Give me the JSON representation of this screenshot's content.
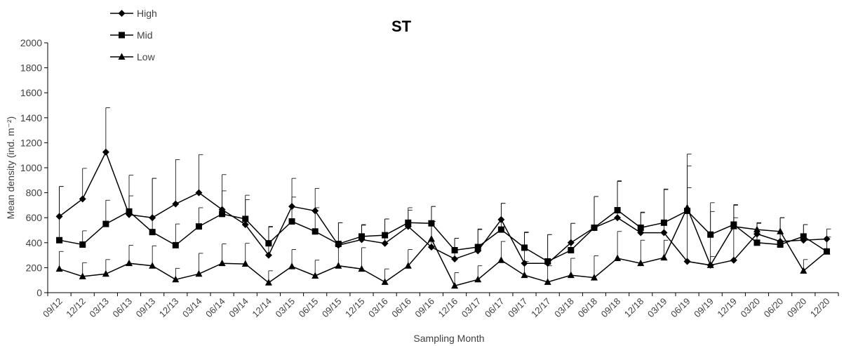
{
  "chart_data": {
    "type": "line",
    "title": "ST",
    "xlabel": "Sampling Month",
    "ylabel": "Mean density (ind. m⁻²)",
    "ylim": [
      0,
      2000
    ],
    "yticks": [
      0,
      200,
      400,
      600,
      800,
      1000,
      1200,
      1400,
      1600,
      1800,
      2000
    ],
    "grid": false,
    "legend_position": "top-left",
    "categories": [
      "09/12",
      "12/12",
      "03/13",
      "06/13",
      "09/13",
      "12/13",
      "03/14",
      "06/14",
      "09/14",
      "12/14",
      "03/15",
      "06/15",
      "09/15",
      "12/15",
      "03/16",
      "06/16",
      "09/16",
      "12/16",
      "03/17",
      "06/17",
      "09/17",
      "12/17",
      "03/18",
      "06/18",
      "09/18",
      "12/18",
      "03/19",
      "06/19",
      "09/19",
      "12/19",
      "03/20",
      "06/20",
      "09/20",
      "12/20"
    ],
    "series": [
      {
        "name": "High",
        "marker": "diamond",
        "color": "#000000",
        "values": [
          610,
          750,
          1125,
          625,
          600,
          710,
          800,
          665,
          545,
          300,
          690,
          655,
          380,
          425,
          395,
          530,
          365,
          270,
          335,
          585,
          235,
          235,
          400,
          520,
          600,
          480,
          480,
          250,
          220,
          260,
          470,
          410,
          420,
          430
        ],
        "error_plus": [
          240,
          245,
          355,
          315,
          315,
          355,
          305,
          280,
          200,
          230,
          225,
          180,
          180,
          120,
          195,
          130,
          325,
          165,
          170,
          130,
          245,
          230,
          155,
          250,
          290,
          165,
          345,
          860,
          500,
          440,
          90,
          190,
          125,
          80
        ]
      },
      {
        "name": "Mid",
        "marker": "square",
        "color": "#000000",
        "values": [
          420,
          385,
          550,
          650,
          485,
          380,
          530,
          630,
          590,
          395,
          570,
          490,
          390,
          450,
          460,
          560,
          555,
          340,
          365,
          505,
          360,
          250,
          340,
          520,
          660,
          520,
          560,
          655,
          465,
          545,
          400,
          385,
          450,
          330
        ],
        "error_plus": [
          430,
          110,
          190,
          125,
          430,
          170,
          150,
          185,
          190,
          130,
          195,
          190,
          170,
          90,
          130,
          120,
          135,
          95,
          145,
          210,
          125,
          215,
          215,
          250,
          235,
          120,
          270,
          360,
          185,
          160,
          160,
          215,
          95,
          115
        ]
      },
      {
        "name": "Low",
        "marker": "triangle",
        "color": "#000000",
        "values": [
          190,
          130,
          150,
          235,
          215,
          105,
          150,
          235,
          230,
          80,
          210,
          135,
          215,
          190,
          85,
          215,
          430,
          55,
          105,
          260,
          140,
          85,
          140,
          120,
          275,
          235,
          280,
          680,
          220,
          530,
          505,
          490,
          175,
          330
        ],
        "error_plus": [
          140,
          110,
          115,
          145,
          160,
          90,
          165,
          155,
          165,
          95,
          135,
          125,
          180,
          170,
          105,
          130,
          140,
          105,
          110,
          150,
          110,
          130,
          135,
          175,
          215,
          185,
          140,
          160,
          70,
          70,
          50,
          110,
          90,
          0
        ]
      }
    ]
  }
}
